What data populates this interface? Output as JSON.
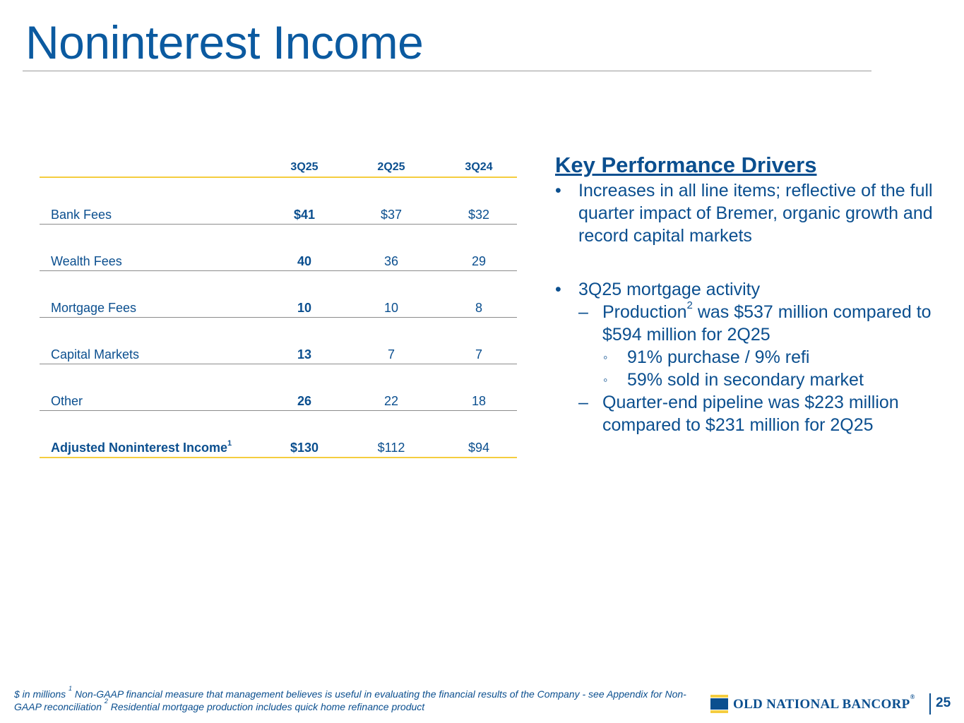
{
  "slide": {
    "title": "Noninterest Income"
  },
  "table": {
    "headers": [
      "3Q25",
      "2Q25",
      "3Q24"
    ],
    "rows": [
      {
        "label": "Bank Fees",
        "values": [
          "$41",
          "$37",
          "$32"
        ]
      },
      {
        "label": "Wealth Fees",
        "values": [
          "40",
          "36",
          "29"
        ]
      },
      {
        "label": "Mortgage Fees",
        "values": [
          "10",
          "10",
          "8"
        ]
      },
      {
        "label": "Capital Markets",
        "values": [
          "13",
          "7",
          "7"
        ]
      },
      {
        "label": "Other",
        "values": [
          "26",
          "22",
          "18"
        ]
      }
    ],
    "total": {
      "label": "Adjusted Noninterest Income",
      "footnote": "1",
      "values": [
        "$130",
        "$112",
        "$94"
      ]
    }
  },
  "drivers": {
    "heading": "Key Performance Drivers",
    "bullet_marker": "•",
    "dash_marker": "–",
    "circle_marker": "◦",
    "bullet1": "Increases in all line items; reflective of the full quarter impact of Bremer, organic growth and record capital markets",
    "bullet2": "3Q25 mortgage activity",
    "sub1_pre": "Production",
    "sub1_sup": "2",
    "sub1_post": " was $537 million compared to $594 million for 2Q25",
    "sub1a": "91% purchase / 9% refi",
    "sub1b": "59% sold in secondary market",
    "sub2": "Quarter-end pipeline was $223 million compared to $231 million for 2Q25"
  },
  "footer": {
    "p1": "$ in millions  ",
    "sup1": "1",
    "p2": " Non-GAAP financial measure that management believes is useful in evaluating the financial results of the Company - see Appendix for Non-GAAP reconciliation  ",
    "sup2": "2",
    "p3": " Residential mortgage production includes quick home refinance product"
  },
  "logo": {
    "name": "OLD NATIONAL BANCORP",
    "reg": "®"
  },
  "page_number": "25",
  "colors": {
    "primary": "#0b4f8f",
    "accent_gold": "#f5cd3f",
    "rule_gray": "#8c8c8c"
  }
}
